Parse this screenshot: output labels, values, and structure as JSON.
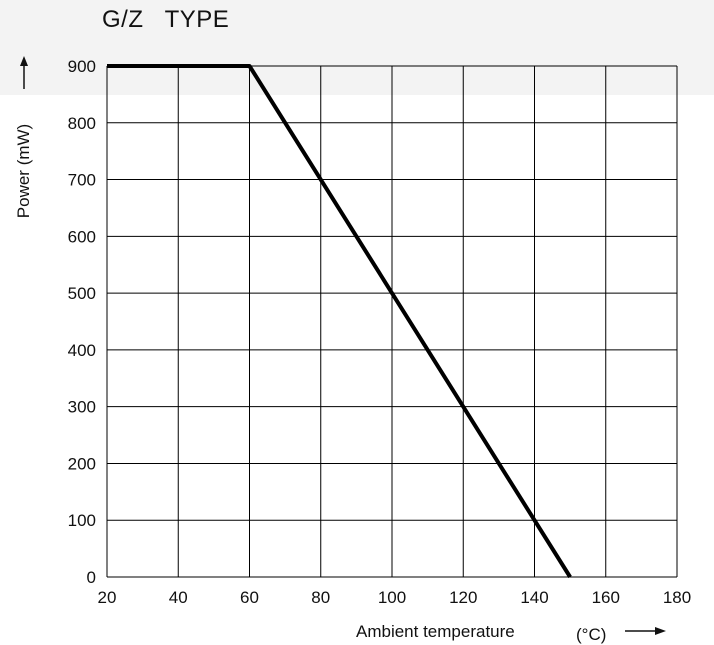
{
  "chart_data": {
    "type": "line",
    "title": "G/Z   TYPE",
    "xlabel": "Ambient temperature",
    "xunit": "(°C)",
    "ylabel": "Power (mW)",
    "xlim": [
      20,
      180
    ],
    "ylim": [
      0,
      900
    ],
    "xticks": [
      20,
      40,
      60,
      80,
      100,
      120,
      140,
      160,
      180
    ],
    "yticks": [
      0,
      100,
      200,
      300,
      400,
      500,
      600,
      700,
      800,
      900
    ],
    "grid": true,
    "series": [
      {
        "x": [
          20,
          60,
          150
        ],
        "y": [
          900,
          900,
          0
        ]
      }
    ]
  },
  "colors": {
    "line": "#000000",
    "grid": "#000000",
    "title_band": "#f3f3f3"
  }
}
